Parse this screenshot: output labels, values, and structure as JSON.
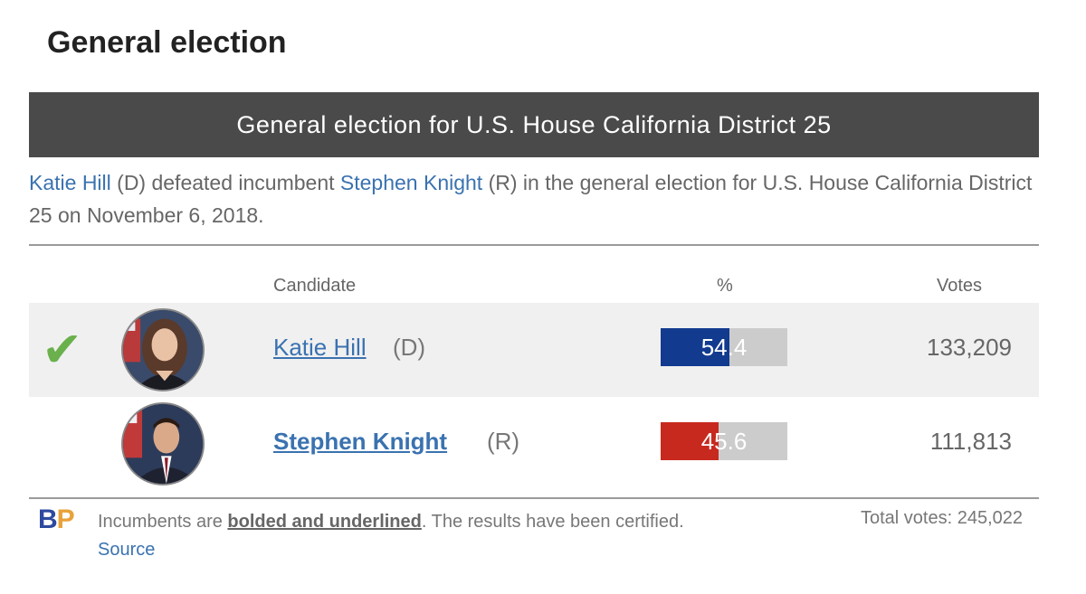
{
  "section_title": "General election",
  "banner_title": "General election for U.S. House California District 25",
  "summary": {
    "winner_name": "Katie Hill",
    "winner_party": " (D) defeated incumbent ",
    "loser_name": "Stephen Knight",
    "rest": " (R) in the general election for U.S. House California District 25 on November 6, 2018."
  },
  "table": {
    "headers": {
      "candidate": "Candidate",
      "percent": "%",
      "votes": "Votes"
    },
    "rows": [
      {
        "check": "✔",
        "name": "Katie Hill",
        "party": "(D)",
        "percent": 54.4,
        "percent_label": "54.4",
        "votes": "133,209",
        "bar_color": "#123b8f",
        "winner": true,
        "incumbent": false
      },
      {
        "check": "",
        "name": "Stephen Knight",
        "party": "(R)",
        "percent": 45.6,
        "percent_label": "45.6",
        "votes": "111,813",
        "bar_color": "#c8291e",
        "winner": false,
        "incumbent": true
      }
    ]
  },
  "footer": {
    "logo_b": "B",
    "logo_p": "P",
    "note_start": "Incumbents are ",
    "note_bold": "bolded and underlined",
    "note_end": ". The results have been certified. ",
    "source_link": "Source",
    "total_votes": "Total votes: 245,022"
  },
  "colors": {
    "banner": "#4a4a4a",
    "link": "#3a72b0",
    "check": "#6ab04c"
  }
}
